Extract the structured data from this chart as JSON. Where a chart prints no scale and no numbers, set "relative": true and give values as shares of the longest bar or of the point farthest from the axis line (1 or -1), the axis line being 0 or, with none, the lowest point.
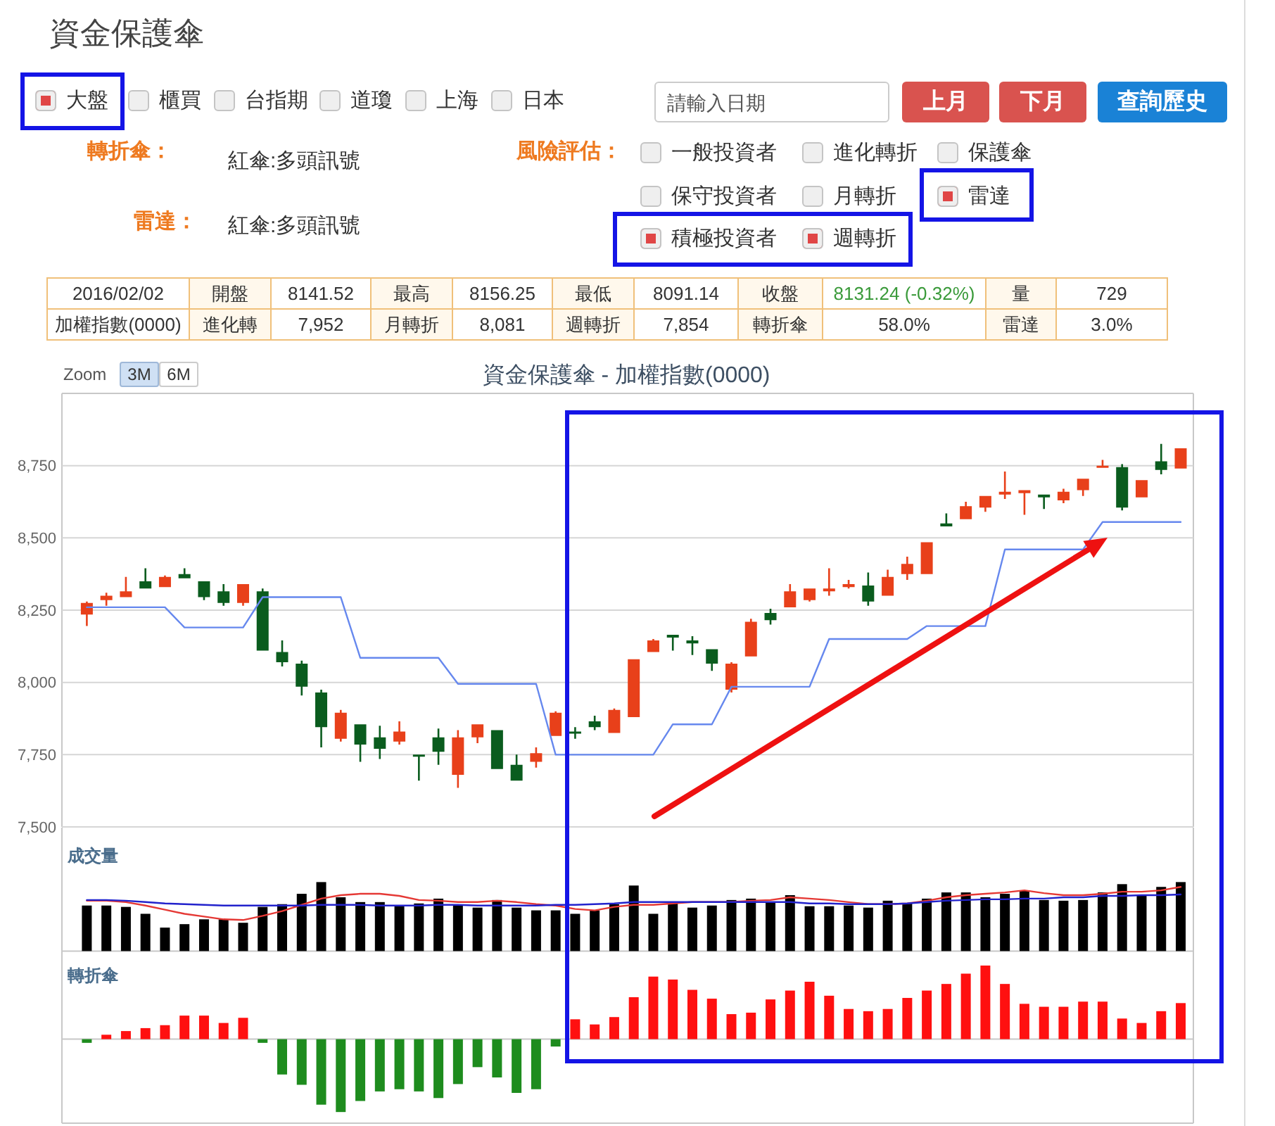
{
  "chart_data": [
    {
      "type": "other",
      "title": "資金保護傘",
      "annotations": [
        "大盤",
        "櫃買",
        "台指期",
        "道瓊",
        "上海",
        "日本",
        "請輸入日期",
        "上月",
        "下月",
        "查詢歷史",
        "轉折傘：",
        "紅傘:多頭訊號",
        "雷達：",
        "紅傘:多頭訊號",
        "風險評估：",
        "一般投資者",
        "進化轉折",
        "保護傘",
        "保守投資者",
        "月轉折",
        "雷達",
        "積極投資者",
        "週轉折"
      ]
    },
    {
      "type": "other",
      "annotations": [
        "2016/02/02",
        "開盤",
        "8141.52",
        "最高",
        "8156.25",
        "最低",
        "8091.14",
        "收盤",
        "8131.24 (-0.32%)",
        "量",
        "729",
        "加權指數(0000)",
        "進化轉",
        "7,952",
        "月轉折",
        "8,081",
        "週轉折",
        "7,854",
        "轉折傘",
        "58.0%",
        "雷達",
        "3.0%"
      ]
    },
    {
      "type": "candlestick",
      "title": "資金保護傘 - 加權指數(0000)",
      "annotations": [
        "Zoom",
        "3M",
        "6M"
      ],
      "categories": [
        null,
        null,
        null,
        null,
        null,
        null,
        null,
        null,
        null,
        null,
        null,
        null,
        null,
        null,
        null,
        null,
        null,
        null,
        null,
        null,
        null,
        null,
        null,
        null,
        null,
        null,
        null,
        null,
        null,
        null,
        null,
        null,
        null,
        null,
        null,
        null,
        null,
        null,
        null,
        null,
        null,
        null,
        null,
        null,
        null,
        null,
        null,
        null,
        null,
        null,
        null,
        null,
        null,
        null,
        null,
        null,
        null
      ],
      "ohlc": [
        [
          8235,
          8280,
          8195,
          8275
        ],
        [
          8285,
          8310,
          8265,
          8300
        ],
        [
          8295,
          8365,
          8295,
          8315
        ],
        [
          8350,
          8395,
          8325,
          8325
        ],
        [
          8330,
          8370,
          8330,
          8365
        ],
        [
          8375,
          8395,
          8360,
          8360
        ],
        [
          8350,
          8350,
          8285,
          8295
        ],
        [
          8315,
          8340,
          8265,
          8275
        ],
        [
          8275,
          8340,
          8265,
          8340
        ],
        [
          8315,
          8325,
          8110,
          8110
        ],
        [
          8105,
          8145,
          8055,
          8070
        ],
        [
          8065,
          8075,
          7955,
          7985
        ],
        [
          7965,
          7975,
          7775,
          7845
        ],
        [
          7805,
          7905,
          7795,
          7895
        ],
        [
          7855,
          7855,
          7725,
          7785
        ],
        [
          7810,
          7850,
          7735,
          7770
        ],
        [
          7795,
          7865,
          7785,
          7830
        ],
        [
          7750,
          7750,
          7660,
          7745
        ],
        [
          7810,
          7840,
          7715,
          7760
        ],
        [
          7680,
          7835,
          7635,
          7810
        ],
        [
          7810,
          7855,
          7790,
          7855
        ],
        [
          7835,
          7835,
          7700,
          7700
        ],
        [
          7715,
          7750,
          7660,
          7660
        ],
        [
          7725,
          7775,
          7705,
          7755
        ],
        [
          7815,
          7900,
          7815,
          7895
        ],
        [
          7830,
          7845,
          7805,
          7825
        ],
        [
          7865,
          7885,
          7835,
          7845
        ],
        [
          7825,
          7910,
          7825,
          7905
        ],
        [
          7880,
          8080,
          7880,
          8080
        ],
        [
          8105,
          8150,
          8105,
          8145
        ],
        [
          8165,
          8165,
          8110,
          8155
        ],
        [
          8145,
          8160,
          8095,
          8135
        ],
        [
          8115,
          8115,
          8040,
          8065
        ],
        [
          7975,
          8070,
          7965,
          8065
        ],
        [
          8090,
          8220,
          8090,
          8210
        ],
        [
          8240,
          8255,
          8200,
          8215
        ],
        [
          8260,
          8340,
          8260,
          8315
        ],
        [
          8285,
          8325,
          8280,
          8325
        ],
        [
          8315,
          8395,
          8300,
          8325
        ],
        [
          8330,
          8355,
          8325,
          8340
        ],
        [
          8335,
          8380,
          8265,
          8280
        ],
        [
          8300,
          8390,
          8300,
          8365
        ],
        [
          8375,
          8435,
          8355,
          8410
        ],
        [
          8375,
          8485,
          8375,
          8485
        ],
        [
          8550,
          8585,
          8540,
          8540
        ],
        [
          8565,
          8625,
          8565,
          8610
        ],
        [
          8605,
          8645,
          8590,
          8645
        ],
        [
          8650,
          8730,
          8635,
          8660
        ],
        [
          8655,
          8665,
          8580,
          8665
        ],
        [
          8650,
          8650,
          8600,
          8640
        ],
        [
          8630,
          8670,
          8620,
          8660
        ],
        [
          8665,
          8705,
          8645,
          8705
        ],
        [
          8745,
          8770,
          8745,
          8750
        ],
        [
          8745,
          8755,
          8595,
          8605
        ],
        [
          8640,
          8700,
          8640,
          8700
        ],
        [
          8765,
          8825,
          8720,
          8735
        ],
        [
          8740,
          8810,
          8740,
          8810
        ]
      ],
      "colors": [
        "#e8401a",
        "#e8401a",
        "#e8401a",
        "#0a5c1e",
        "#e8401a",
        "#0a5c1e",
        "#0a5c1e",
        "#0a5c1e",
        "#e8401a",
        "#0a5c1e",
        "#0a5c1e",
        "#0a5c1e",
        "#0a5c1e",
        "#e8401a",
        "#0a5c1e",
        "#0a5c1e",
        "#e8401a",
        "#0a5c1e",
        "#0a5c1e",
        "#e8401a",
        "#e8401a",
        "#0a5c1e",
        "#0a5c1e",
        "#e8401a",
        "#e8401a",
        "#0a5c1e",
        "#0a5c1e",
        "#e8401a",
        "#e8401a",
        "#e8401a",
        "#0a5c1e",
        "#0a5c1e",
        "#0a5c1e",
        "#e8401a",
        "#e8401a",
        "#0a5c1e",
        "#e8401a",
        "#e8401a",
        "#e8401a",
        "#e8401a",
        "#0a5c1e",
        "#e8401a",
        "#e8401a",
        "#e8401a",
        "#0a5c1e",
        "#e8401a",
        "#e8401a",
        "#e8401a",
        "#e8401a",
        "#0a5c1e",
        "#e8401a",
        "#e8401a",
        "#e8401a",
        "#0a5c1e",
        "#e8401a",
        "#0a5c1e",
        "#e8401a"
      ],
      "series": [
        {
          "type": "line",
          "color": "#6688ee",
          "values": [
            8260,
            8260,
            8260,
            8260,
            8260,
            8190,
            8190,
            8190,
            8190,
            8295,
            8295,
            8295,
            8295,
            8295,
            8085,
            8085,
            8085,
            8085,
            8085,
            7995,
            7995,
            7995,
            7995,
            7995,
            7750,
            7750,
            7750,
            7750,
            7750,
            7750,
            7855,
            7855,
            7855,
            7985,
            7985,
            7985,
            7985,
            7985,
            8150,
            8150,
            8150,
            8150,
            8150,
            8195,
            8195,
            8195,
            8195,
            8460,
            8460,
            8460,
            8460,
            8460,
            8555,
            8555,
            8555,
            8555,
            8555
          ]
        }
      ],
      "ylim": [
        7500,
        9000
      ],
      "yticks": [
        {
          "value": 7500,
          "label": "7,500"
        },
        {
          "value": 7750,
          "label": "7,750"
        },
        {
          "value": 8000,
          "label": "8,000"
        },
        {
          "value": 8250,
          "label": "8,250"
        },
        {
          "value": 8500,
          "label": "8,500"
        },
        {
          "value": 8750,
          "label": "8,750"
        }
      ],
      "grid": "y"
    },
    {
      "type": "bar",
      "title": "成交量",
      "relative": true,
      "categories": [
        null,
        null,
        null,
        null,
        null,
        null,
        null,
        null,
        null,
        null,
        null,
        null,
        null,
        null,
        null,
        null,
        null,
        null,
        null,
        null,
        null,
        null,
        null,
        null,
        null,
        null,
        null,
        null,
        null,
        null,
        null,
        null,
        null,
        null,
        null,
        null,
        null,
        null,
        null,
        null,
        null,
        null,
        null,
        null,
        null,
        null,
        null,
        null,
        null,
        null,
        null,
        null,
        null,
        null,
        null,
        null,
        null
      ],
      "series": [
        {
          "type": "bar",
          "color": "#000000",
          "values": [
            0.66,
            0.66,
            0.64,
            0.54,
            0.34,
            0.39,
            0.46,
            0.46,
            0.41,
            0.64,
            0.68,
            0.83,
            1,
            0.78,
            0.71,
            0.71,
            0.65,
            0.69,
            0.76,
            0.67,
            0.63,
            0.74,
            0.63,
            0.59,
            0.59,
            0.54,
            0.59,
            0.68,
            0.95,
            0.54,
            0.71,
            0.63,
            0.66,
            0.74,
            0.76,
            0.71,
            0.81,
            0.65,
            0.65,
            0.66,
            0.63,
            0.73,
            0.69,
            0.76,
            0.85,
            0.85,
            0.78,
            0.83,
            0.88,
            0.74,
            0.73,
            0.74,
            0.85,
            0.97,
            0.8,
            0.93,
            1
          ]
        },
        {
          "type": "line",
          "color": "#e53935",
          "values": [
            0.73,
            0.73,
            0.71,
            0.66,
            0.6,
            0.54,
            0.5,
            0.46,
            0.45,
            0.51,
            0.58,
            0.67,
            0.76,
            0.81,
            0.83,
            0.83,
            0.8,
            0.74,
            0.73,
            0.71,
            0.71,
            0.73,
            0.71,
            0.68,
            0.66,
            0.61,
            0.59,
            0.64,
            0.67,
            0.67,
            0.69,
            0.71,
            0.71,
            0.71,
            0.73,
            0.74,
            0.78,
            0.76,
            0.74,
            0.71,
            0.68,
            0.68,
            0.69,
            0.73,
            0.78,
            0.81,
            0.83,
            0.85,
            0.88,
            0.84,
            0.81,
            0.81,
            0.83,
            0.86,
            0.86,
            0.88,
            0.93
          ]
        },
        {
          "type": "line",
          "color": "#2222cc",
          "values": [
            0.74,
            0.74,
            0.73,
            0.71,
            0.69,
            0.68,
            0.67,
            0.66,
            0.66,
            0.66,
            0.66,
            0.66,
            0.67,
            0.67,
            0.67,
            0.66,
            0.66,
            0.66,
            0.67,
            0.67,
            0.66,
            0.66,
            0.66,
            0.66,
            0.67,
            0.67,
            0.68,
            0.69,
            0.71,
            0.71,
            0.71,
            0.71,
            0.71,
            0.71,
            0.71,
            0.71,
            0.71,
            0.69,
            0.69,
            0.68,
            0.68,
            0.68,
            0.69,
            0.71,
            0.73,
            0.74,
            0.75,
            0.75,
            0.76,
            0.76,
            0.78,
            0.78,
            0.8,
            0.8,
            0.81,
            0.81,
            0.82
          ]
        }
      ]
    },
    {
      "type": "bar",
      "title": "轉折傘",
      "relative": true,
      "categories": [
        null,
        null,
        null,
        null,
        null,
        null,
        null,
        null,
        null,
        null,
        null,
        null,
        null,
        null,
        null,
        null,
        null,
        null,
        null,
        null,
        null,
        null,
        null,
        null,
        null,
        null,
        null,
        null,
        null,
        null,
        null,
        null,
        null,
        null,
        null,
        null,
        null,
        null,
        null,
        null,
        null,
        null,
        null,
        null,
        null,
        null,
        null,
        null,
        null,
        null,
        null,
        null,
        null,
        null,
        null,
        null,
        null
      ],
      "values": [
        -0.05,
        0.06,
        0.11,
        0.15,
        0.19,
        0.32,
        0.32,
        0.22,
        0.29,
        -0.05,
        -0.48,
        -0.62,
        -0.89,
        -0.99,
        -0.84,
        -0.71,
        -0.68,
        -0.71,
        -0.8,
        -0.61,
        -0.38,
        -0.52,
        -0.73,
        -0.68,
        -0.1,
        0.27,
        0.2,
        0.3,
        0.57,
        0.85,
        0.81,
        0.67,
        0.55,
        0.34,
        0.36,
        0.54,
        0.66,
        0.78,
        0.59,
        0.41,
        0.38,
        0.41,
        0.56,
        0.66,
        0.75,
        0.89,
        1,
        0.75,
        0.48,
        0.44,
        0.44,
        0.51,
        0.51,
        0.28,
        0.22,
        0.38,
        0.49
      ],
      "colors": [
        "#1e8c1e",
        "#ff1010",
        "#ff1010",
        "#ff1010",
        "#ff1010",
        "#ff1010",
        "#ff1010",
        "#ff1010",
        "#ff1010",
        "#1e8c1e",
        "#1e8c1e",
        "#1e8c1e",
        "#1e8c1e",
        "#1e8c1e",
        "#1e8c1e",
        "#1e8c1e",
        "#1e8c1e",
        "#1e8c1e",
        "#1e8c1e",
        "#1e8c1e",
        "#1e8c1e",
        "#1e8c1e",
        "#1e8c1e",
        "#1e8c1e",
        "#1e8c1e",
        "#ff1010",
        "#ff1010",
        "#ff1010",
        "#ff1010",
        "#ff1010",
        "#ff1010",
        "#ff1010",
        "#ff1010",
        "#ff1010",
        "#ff1010",
        "#ff1010",
        "#ff1010",
        "#ff1010",
        "#ff1010",
        "#ff1010",
        "#ff1010",
        "#ff1010",
        "#ff1010",
        "#ff1010",
        "#ff1010",
        "#ff1010",
        "#ff1010",
        "#ff1010",
        "#ff1010",
        "#ff1010",
        "#ff1010",
        "#ff1010",
        "#ff1010",
        "#ff1010",
        "#ff1010",
        "#ff1010",
        "#ff1010"
      ]
    }
  ]
}
